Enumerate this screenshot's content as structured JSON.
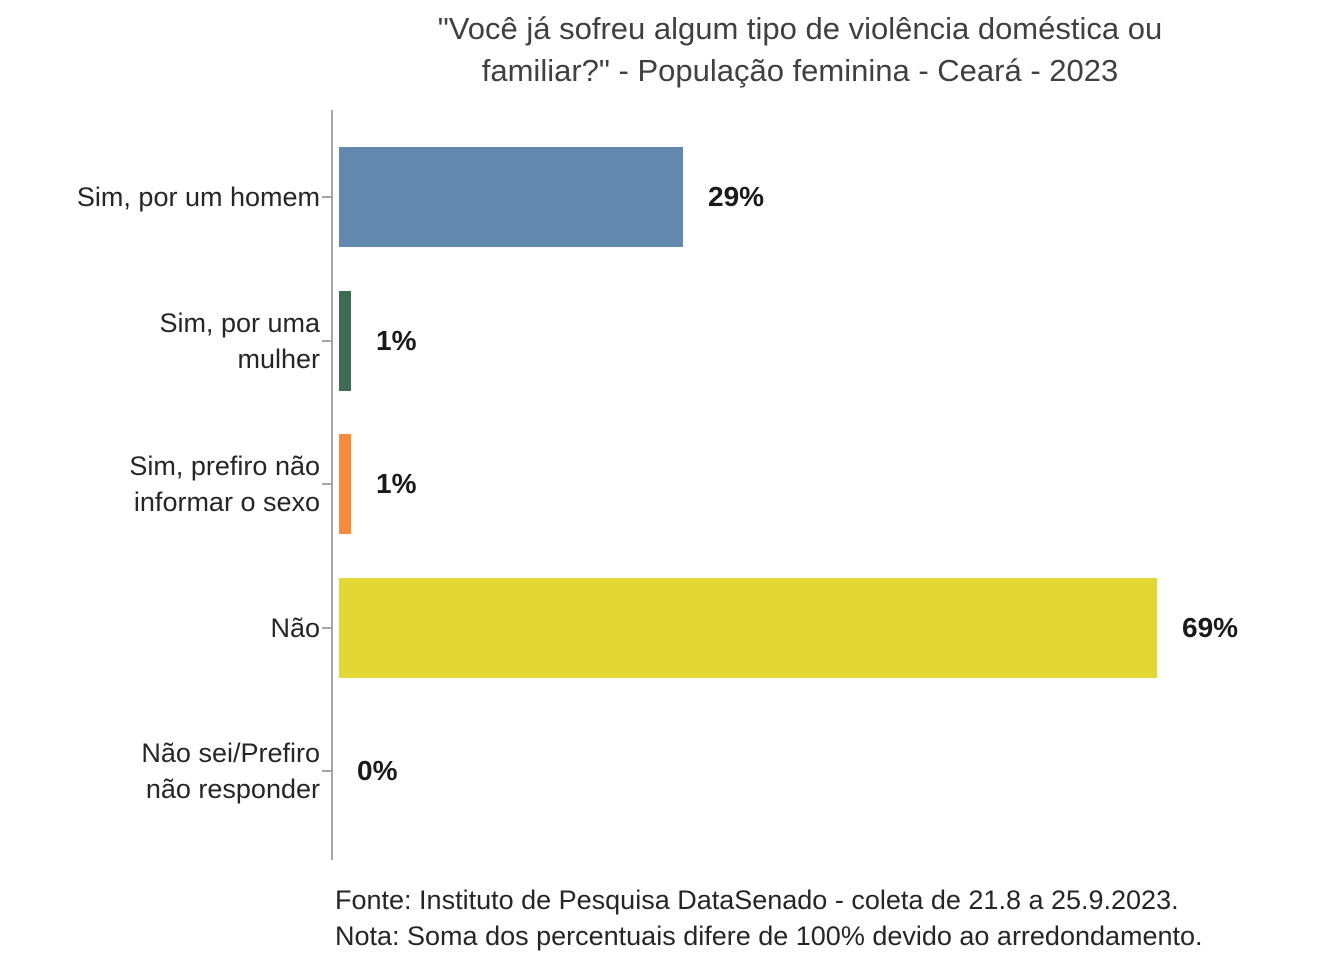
{
  "title": {
    "lines": [
      "\"Você já sofreu algum tipo de violência doméstica ou",
      "familiar?\" - População feminina - Ceará - 2023"
    ]
  },
  "footer": {
    "source": "Fonte: Instituto de Pesquisa DataSenado - coleta de 21.8 a 25.9.2023.",
    "note": "Nota: Soma dos percentuais difere de 100% devido ao arredondamento."
  },
  "colors": {
    "background": "#FFFFFF",
    "axis": "#A6A6A6",
    "title_text": "#404040",
    "category_text": "#262626",
    "value_text": "#1A1A1A",
    "bar_blue": "#6288AE",
    "bar_green": "#3E6B54",
    "bar_orange": "#F68B3C",
    "bar_yellow": "#E3D735"
  },
  "chart_data": {
    "type": "bar",
    "orientation": "horizontal",
    "title": "\"Você já sofreu algum tipo de violência doméstica ou familiar?\" - População feminina - Ceará - 2023",
    "categories": [
      "Sim, por um homem",
      "Sim, por uma mulher",
      "Sim, prefiro não informar o sexo",
      "Não",
      "Não sei/Prefiro não responder"
    ],
    "category_label_lines": [
      [
        "Sim, por um homem"
      ],
      [
        "Sim, por uma",
        "mulher"
      ],
      [
        "Sim, prefiro não",
        "informar o sexo"
      ],
      [
        "Não"
      ],
      [
        "Não sei/Prefiro",
        "não responder"
      ]
    ],
    "values": [
      29,
      1,
      1,
      69,
      0
    ],
    "value_labels": [
      "29%",
      "1%",
      "1%",
      "69%",
      "0%"
    ],
    "bar_colors": [
      "#6288AE",
      "#3E6B54",
      "#F68B3C",
      "#E3D735",
      "none"
    ],
    "xlabel": "",
    "ylabel": "",
    "xlim": [
      0,
      69
    ],
    "grid": false,
    "legend": false,
    "source_note": "Fonte: Instituto de Pesquisa DataSenado - coleta de 21.8 a 25.9.2023.",
    "rounding_note": "Nota: Soma dos percentuais difere de 100% devido ao arredondamento."
  }
}
